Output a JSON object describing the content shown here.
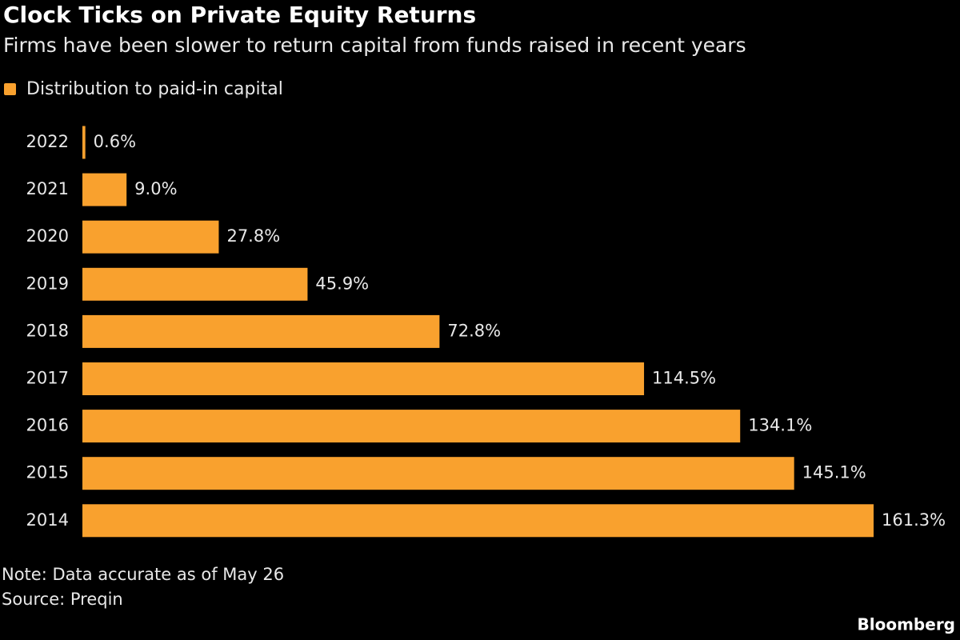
{
  "chart_data": {
    "type": "bar",
    "orientation": "horizontal",
    "title": "Clock Ticks on Private Equity Returns",
    "subtitle": "Firms have been slower to return capital from funds raised in recent years",
    "categories": [
      "2022",
      "2021",
      "2020",
      "2019",
      "2018",
      "2017",
      "2016",
      "2015",
      "2014"
    ],
    "series": [
      {
        "name": "Distribution to paid-in capital",
        "color": "#f9a12e",
        "values": [
          0.6,
          9.0,
          27.8,
          45.9,
          72.8,
          114.5,
          134.1,
          145.1,
          161.3
        ],
        "value_labels": [
          "0.6%",
          "9.0%",
          "27.8%",
          "45.9%",
          "72.8%",
          "114.5%",
          "134.1%",
          "145.1%",
          "161.3%"
        ]
      }
    ],
    "note": "Note: Data accurate as of May 26",
    "source": "Source: Preqin",
    "credit": "Bloomberg"
  }
}
